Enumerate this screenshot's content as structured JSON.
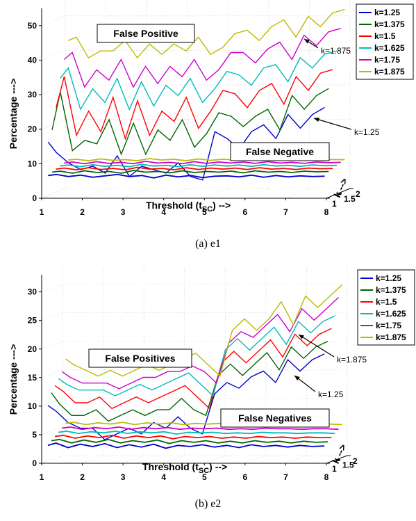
{
  "chart_data": [
    {
      "type": "line",
      "caption": "(a) e1",
      "xlabel": "Threshold (t",
      "xlabel_sub": "SC",
      "xlabel_tail": ") -->",
      "ylabel": "Percentage --->",
      "zlabel": "k -->",
      "xlim": [
        1,
        8
      ],
      "ylim": [
        0,
        55
      ],
      "x_ticks": [
        "1",
        "2",
        "3",
        "4",
        "5",
        "6",
        "7",
        "8"
      ],
      "y_ticks": [
        "0",
        "10",
        "20",
        "30",
        "40",
        "50"
      ],
      "depth_ticks": [
        "1",
        "1.5",
        "2"
      ],
      "box_labels": [
        "False Positive",
        "False Negative"
      ],
      "legend_position": "top-right",
      "grid": true,
      "annotations": [
        {
          "text": "k=1.875",
          "series": 5,
          "x": 6.9
        },
        {
          "text": "k=1.25",
          "series": 0,
          "x": 7.0
        }
      ],
      "x": [
        1.1,
        1.3,
        1.6,
        1.9,
        2.2,
        2.5,
        2.8,
        3.1,
        3.4,
        3.7,
        4.0,
        4.3,
        4.6,
        4.9,
        5.2,
        5.5,
        5.8,
        6.1,
        6.4,
        6.7,
        7.0,
        7.3,
        7.6,
        7.9
      ],
      "series": [
        {
          "name": "k=1.25",
          "color": "#0000cc",
          "fp": [
            16,
            13,
            10,
            8,
            9,
            7,
            12,
            6,
            9,
            8,
            7,
            10,
            6,
            5,
            19,
            17,
            14,
            19,
            21,
            17,
            24,
            20,
            24,
            26
          ],
          "fn": [
            6.3,
            6.6,
            6.0,
            6.4,
            5.8,
            6.2,
            6.6,
            6.0,
            6.3,
            5.6,
            6.4,
            5.9,
            6.3,
            5.7,
            6.1,
            6.2,
            5.9,
            6.4,
            5.8,
            6.3,
            5.9,
            6.2,
            6.0,
            6.1
          ]
        },
        {
          "name": "k=1.375",
          "color": "#006600",
          "fp": [
            19,
            30,
            13,
            16,
            15,
            22,
            12,
            21,
            12,
            19,
            16,
            22,
            14,
            18,
            24,
            23,
            20,
            23,
            25,
            19,
            29,
            25,
            29,
            31
          ],
          "fn": [
            6.8,
            7.1,
            6.5,
            7.2,
            6.7,
            7.0,
            6.5,
            7.3,
            6.8,
            7.0,
            6.6,
            7.2,
            6.7,
            7.0,
            6.8,
            7.1,
            6.6,
            7.2,
            6.8,
            7.0,
            6.7,
            7.1,
            6.9,
            7.0
          ]
        },
        {
          "name": "k=1.5",
          "color": "#ff0000",
          "fp": [
            25,
            34,
            17,
            24,
            18,
            28,
            16,
            27,
            17,
            24,
            21,
            28,
            19,
            24,
            30,
            29,
            25,
            30,
            32,
            26,
            34,
            30,
            35,
            36
          ],
          "fn": [
            7.2,
            7.5,
            7.0,
            7.6,
            7.1,
            7.4,
            7.0,
            7.7,
            7.2,
            7.4,
            7.0,
            7.6,
            7.1,
            7.5,
            7.2,
            7.5,
            7.1,
            7.6,
            7.2,
            7.4,
            7.1,
            7.5,
            7.3,
            7.4
          ]
        },
        {
          "name": "k=1.625",
          "color": "#00bbbb",
          "fp": [
            33,
            36,
            24,
            30,
            26,
            33,
            24,
            32,
            25,
            31,
            28,
            33,
            26,
            30,
            35,
            34,
            31,
            36,
            37,
            32,
            39,
            36,
            40,
            41
          ],
          "fn": [
            7.6,
            7.9,
            7.4,
            8.0,
            7.5,
            7.8,
            7.4,
            8.1,
            7.6,
            7.8,
            7.4,
            8.0,
            7.5,
            7.9,
            7.6,
            7.9,
            7.5,
            8.0,
            7.6,
            7.8,
            7.5,
            7.9,
            7.7,
            7.8
          ]
        },
        {
          "name": "k=1.75",
          "color": "#cc00cc",
          "fp": [
            38,
            40,
            30,
            35,
            32,
            38,
            30,
            36,
            31,
            36,
            33,
            38,
            32,
            35,
            40,
            40,
            37,
            41,
            43,
            38,
            45,
            42,
            46,
            47
          ],
          "fn": [
            8.0,
            8.3,
            7.8,
            8.4,
            7.9,
            8.2,
            7.8,
            8.5,
            8.0,
            8.2,
            7.8,
            8.4,
            7.9,
            8.3,
            8.0,
            8.3,
            7.9,
            8.4,
            8.0,
            8.2,
            7.9,
            8.3,
            8.1,
            8.2
          ]
        },
        {
          "name": "k=1.875",
          "color": "#bbbb00",
          "fp": [
            43,
            44,
            38,
            40,
            40,
            43,
            38,
            42,
            39,
            42,
            40,
            44,
            39,
            41,
            45,
            46,
            43,
            47,
            49,
            44,
            50,
            47,
            51,
            52
          ],
          "fn": [
            8.4,
            8.6,
            8.2,
            8.7,
            8.3,
            8.5,
            8.2,
            8.8,
            8.4,
            8.6,
            8.2,
            8.7,
            8.3,
            8.6,
            8.4,
            8.6,
            8.3,
            8.7,
            8.4,
            8.6,
            8.3,
            8.6,
            8.5,
            8.5
          ]
        }
      ]
    },
    {
      "type": "line",
      "caption": "(b) e2",
      "xlabel": "Threshold (t",
      "xlabel_sub": "SC",
      "xlabel_tail": ") -->",
      "ylabel": "Percentage --->",
      "zlabel": "k -->",
      "xlim": [
        1,
        8
      ],
      "ylim": [
        0,
        33
      ],
      "x_ticks": [
        "1",
        "2",
        "3",
        "4",
        "5",
        "6",
        "7",
        "8"
      ],
      "y_ticks": [
        "0",
        "5",
        "10",
        "15",
        "20",
        "25",
        "30"
      ],
      "depth_ticks": [
        "1",
        "1.5",
        "2"
      ],
      "box_labels": [
        "False Positives",
        "False Negatives"
      ],
      "legend_position": "top-right",
      "grid": true,
      "annotations": [
        {
          "text": "k=1.875",
          "series": 5,
          "x": 6.9
        },
        {
          "text": "k=1.25",
          "series": 0,
          "x": 7.0
        }
      ],
      "x": [
        1.1,
        1.3,
        1.6,
        1.9,
        2.2,
        2.5,
        2.8,
        3.1,
        3.4,
        3.7,
        4.0,
        4.3,
        4.6,
        4.9,
        5.2,
        5.5,
        5.8,
        6.1,
        6.4,
        6.7,
        7.0,
        7.3,
        7.6,
        7.9
      ],
      "series": [
        {
          "name": "k=1.25",
          "color": "#0000cc",
          "fp": [
            10,
            9,
            7,
            6,
            6,
            4,
            5,
            6,
            5,
            7,
            6,
            8,
            6,
            5,
            12,
            14,
            13,
            15,
            16,
            14,
            18,
            16,
            18,
            19
          ],
          "fn": [
            3.0,
            3.4,
            2.6,
            3.2,
            2.8,
            3.3,
            2.6,
            3.1,
            2.7,
            3.2,
            2.5,
            3.0,
            2.8,
            3.1,
            2.7,
            3.0,
            2.6,
            3.1,
            2.8,
            3.0,
            2.7,
            3.0,
            2.8,
            2.9
          ]
        },
        {
          "name": "k=1.375",
          "color": "#006600",
          "fp": [
            12,
            10,
            8,
            8,
            9,
            7,
            8,
            9,
            8,
            9,
            9,
            11,
            9,
            8,
            15,
            17,
            15,
            17,
            19,
            16,
            20,
            18,
            20,
            21
          ],
          "fn": [
            3.6,
            3.8,
            3.2,
            3.7,
            3.3,
            3.8,
            3.2,
            3.6,
            3.3,
            3.7,
            3.1,
            3.6,
            3.3,
            3.6,
            3.2,
            3.5,
            3.2,
            3.6,
            3.3,
            3.5,
            3.2,
            3.5,
            3.3,
            3.4
          ]
        },
        {
          "name": "k=1.5",
          "color": "#ff0000",
          "fp": [
            13,
            12,
            10,
            10,
            11,
            9,
            10,
            11,
            10,
            11,
            12,
            13,
            11,
            9,
            17,
            19,
            17,
            19,
            21,
            18,
            22,
            20,
            22,
            23
          ],
          "fn": [
            4.1,
            4.3,
            3.8,
            4.2,
            3.9,
            4.3,
            3.8,
            4.2,
            3.9,
            4.2,
            3.7,
            4.1,
            3.9,
            4.1,
            3.8,
            4.0,
            3.8,
            4.1,
            3.9,
            4.0,
            3.8,
            4.0,
            3.9,
            3.9
          ]
        },
        {
          "name": "k=1.625",
          "color": "#00bbbb",
          "fp": [
            14,
            13,
            12,
            12,
            12,
            11,
            12,
            13,
            12,
            13,
            14,
            15,
            13,
            11,
            19,
            21,
            19,
            21,
            23,
            20,
            24,
            22,
            24,
            25
          ],
          "fn": [
            4.6,
            4.8,
            4.4,
            4.7,
            4.5,
            4.8,
            4.4,
            4.7,
            4.5,
            4.7,
            4.3,
            4.6,
            4.5,
            4.6,
            4.4,
            4.5,
            4.4,
            4.6,
            4.5,
            4.5,
            4.4,
            4.5,
            4.5,
            4.4
          ]
        },
        {
          "name": "k=1.75",
          "color": "#cc00cc",
          "fp": [
            15,
            14,
            13,
            13,
            13,
            12,
            13,
            14,
            14,
            15,
            15,
            16,
            15,
            13,
            20,
            22,
            21,
            23,
            25,
            22,
            26,
            24,
            26,
            28
          ],
          "fn": [
            5.1,
            5.3,
            4.9,
            5.2,
            5.0,
            5.3,
            4.9,
            5.2,
            5.0,
            5.2,
            4.9,
            5.1,
            5.0,
            5.1,
            4.9,
            5.0,
            4.9,
            5.1,
            5.0,
            5.0,
            4.9,
            5.0,
            5.0,
            4.9
          ]
        },
        {
          "name": "k=1.875",
          "color": "#bbbb00",
          "fp": [
            17,
            16,
            15,
            14,
            15,
            14,
            15,
            16,
            15,
            16,
            17,
            18,
            16,
            14,
            22,
            24,
            22,
            24,
            27,
            23,
            28,
            26,
            28,
            30
          ],
          "fn": [
            5.7,
            5.9,
            5.5,
            5.8,
            5.6,
            5.9,
            5.5,
            5.8,
            5.6,
            5.8,
            5.5,
            5.7,
            5.6,
            5.7,
            5.5,
            5.6,
            5.5,
            5.7,
            5.6,
            5.6,
            5.5,
            5.6,
            5.6,
            5.5
          ]
        }
      ]
    }
  ]
}
